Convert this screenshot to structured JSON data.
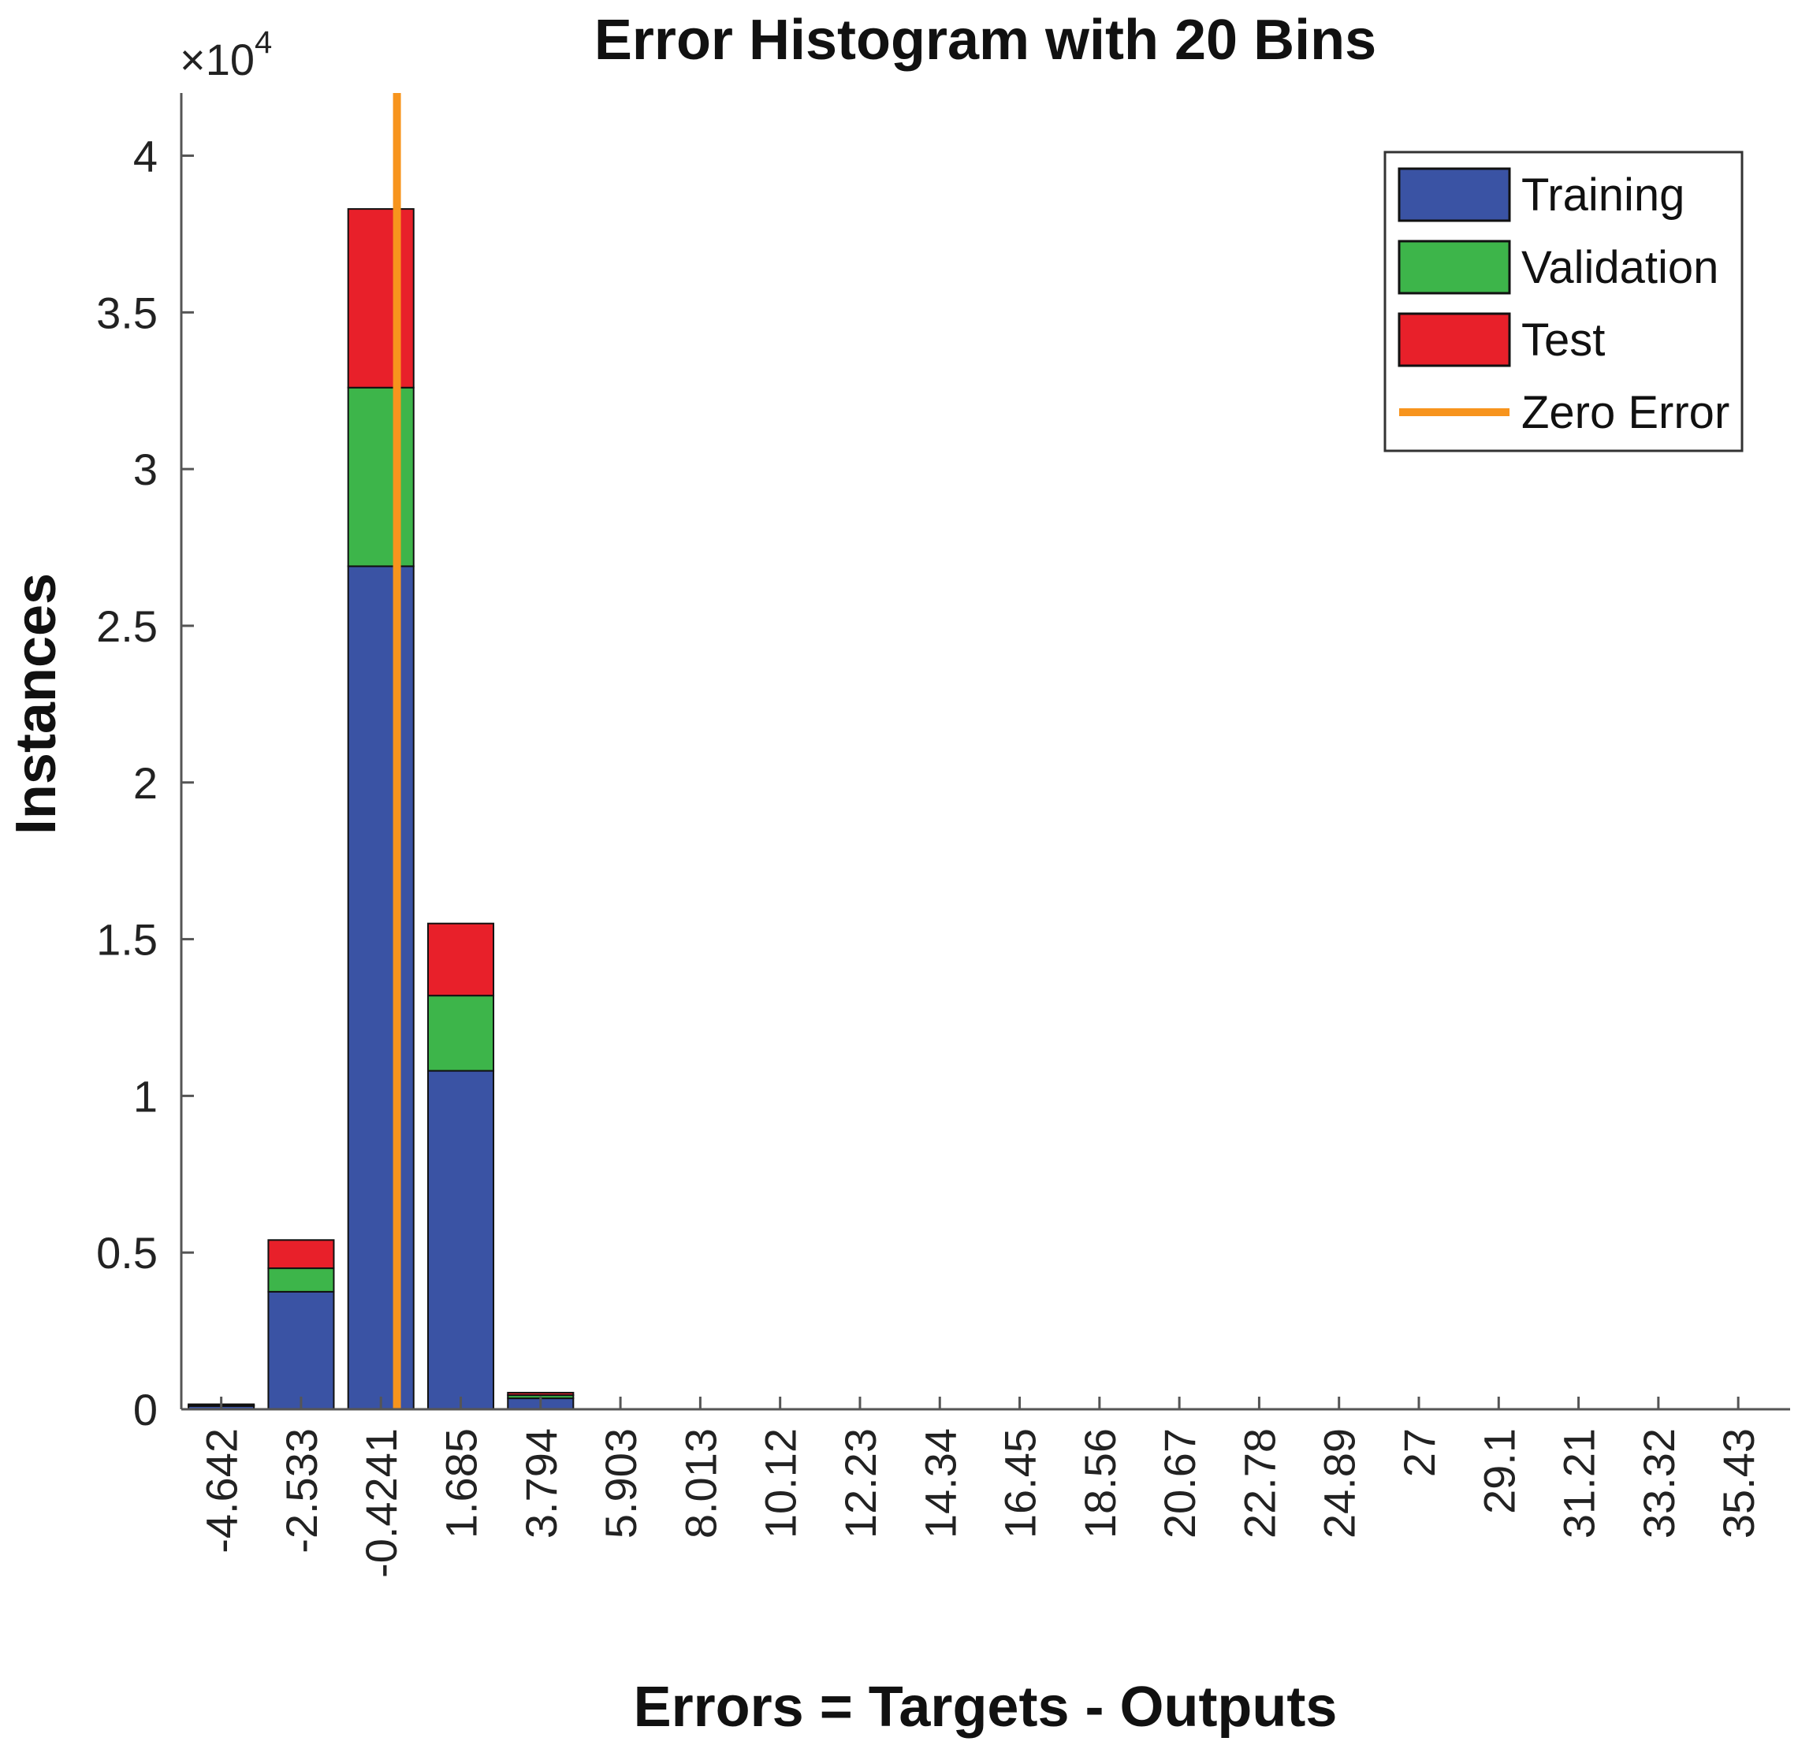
{
  "chart_data": {
    "type": "bar",
    "stacked": true,
    "title": "Error Histogram with 20 Bins",
    "xlabel": "Errors = Targets - Outputs",
    "ylabel": "Instances",
    "y_exponent_label": "×10",
    "y_exponent_power": "4",
    "ylim": [
      0,
      42000
    ],
    "yticks": [
      0,
      5000,
      10000,
      15000,
      20000,
      25000,
      30000,
      35000,
      40000
    ],
    "ytick_labels": [
      "0",
      "0.5",
      "1",
      "1.5",
      "2",
      "2.5",
      "3",
      "3.5",
      "4"
    ],
    "categories": [
      "-4.642",
      "-2.533",
      "-0.4241",
      "1.685",
      "3.794",
      "5.903",
      "8.013",
      "10.12",
      "12.23",
      "14.34",
      "16.45",
      "18.56",
      "20.67",
      "22.78",
      "24.89",
      "27",
      "29.1",
      "31.21",
      "33.32",
      "35.43"
    ],
    "series": [
      {
        "name": "Training",
        "color": "#3a53a4",
        "values": [
          100,
          3750,
          26900,
          10800,
          350,
          0,
          0,
          0,
          0,
          0,
          0,
          0,
          0,
          0,
          0,
          0,
          0,
          0,
          0,
          0
        ]
      },
      {
        "name": "Validation",
        "color": "#3db54a",
        "values": [
          30,
          750,
          5700,
          2400,
          100,
          0,
          0,
          0,
          0,
          0,
          0,
          0,
          0,
          0,
          0,
          0,
          0,
          0,
          0,
          0
        ]
      },
      {
        "name": "Test",
        "color": "#e8202a",
        "values": [
          30,
          900,
          5700,
          2300,
          80,
          0,
          0,
          0,
          0,
          0,
          0,
          0,
          0,
          0,
          0,
          0,
          0,
          0,
          0,
          0
        ]
      }
    ],
    "zero_error": {
      "name": "Zero Error",
      "color": "#f7941d",
      "x": 0
    },
    "grid": false,
    "legend_position": "top-right"
  }
}
